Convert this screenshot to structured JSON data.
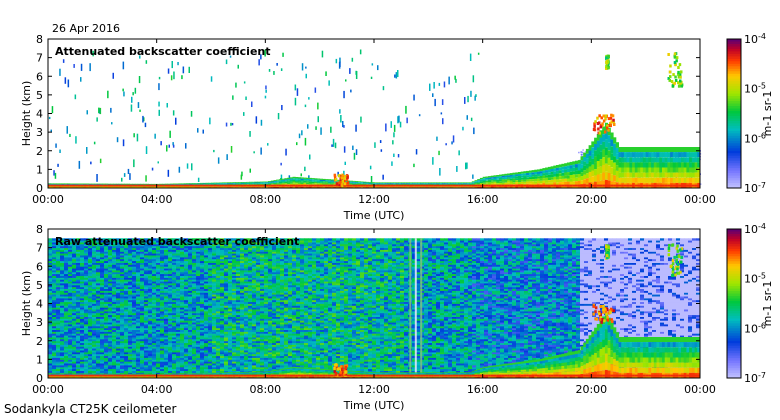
{
  "header": {
    "date": "26 Apr 2016"
  },
  "footer": {
    "instrument": "Sodankyla CT25K ceilometer"
  },
  "chart_data": [
    {
      "type": "heatmap",
      "title": "Attenuated backscatter coefficient",
      "xlabel": "Time (UTC)",
      "ylabel": "Height (km)",
      "xticks": [
        "00:00",
        "04:00",
        "08:00",
        "12:00",
        "16:00",
        "20:00",
        "00:00"
      ],
      "xlim_hours": [
        0,
        24
      ],
      "yticks": [
        0,
        1,
        2,
        3,
        4,
        5,
        6,
        7,
        8
      ],
      "ylim": [
        0,
        8
      ],
      "colorbar": {
        "scale": "log",
        "range": [
          1e-07,
          0.0001
        ],
        "ticks": [
          "10-7",
          "10-6",
          "10-5",
          "10-4"
        ],
        "unit": "m-1 sr-1"
      },
      "features": {
        "boundary_layer": [
          [
            0,
            0.25
          ],
          [
            4,
            0.22
          ],
          [
            8,
            0.35
          ],
          [
            9,
            0.6
          ],
          [
            12,
            0.3
          ],
          [
            15.5,
            0.3
          ],
          [
            16,
            0.6
          ],
          [
            18,
            1.0
          ],
          [
            19.5,
            1.5
          ],
          [
            20.5,
            3.5
          ],
          [
            21,
            2.2
          ],
          [
            24,
            2.2
          ]
        ],
        "clouds": [
          {
            "t": [
              20.0,
              20.8
            ],
            "h": [
              3.0,
              4.0
            ],
            "level": "high"
          },
          {
            "t": [
              20.5,
              20.6
            ],
            "h": [
              6.5,
              7.2
            ],
            "level": "mid"
          },
          {
            "t": [
              22.8,
              23.3
            ],
            "h": [
              5.5,
              7.3
            ],
            "level": "mid"
          },
          {
            "t": [
              10.5,
              11.0
            ],
            "h": [
              0.2,
              0.8
            ],
            "level": "high"
          }
        ]
      }
    },
    {
      "type": "heatmap",
      "title": "Raw attenuated backscatter coefficient",
      "xlabel": "Time (UTC)",
      "ylabel": "Height (km)",
      "xticks": [
        "00:00",
        "04:00",
        "08:00",
        "12:00",
        "16:00",
        "20:00",
        "00:00"
      ],
      "xlim_hours": [
        0,
        24
      ],
      "yticks": [
        0,
        1,
        2,
        3,
        4,
        5,
        6,
        7,
        8
      ],
      "ylim": [
        0,
        8
      ],
      "colorbar": {
        "scale": "log",
        "range": [
          1e-07,
          0.0001
        ],
        "ticks": [
          "10-7",
          "10-6",
          "10-5",
          "10-4"
        ],
        "unit": "m-1 sr-1"
      },
      "features": {
        "noise_band_km": [
          0,
          7.5
        ],
        "noise_vertical_lines_hours": [
          13.3,
          13.5,
          13.7
        ],
        "daytime_grey_region_hours": [
          19.5,
          24
        ]
      }
    }
  ]
}
